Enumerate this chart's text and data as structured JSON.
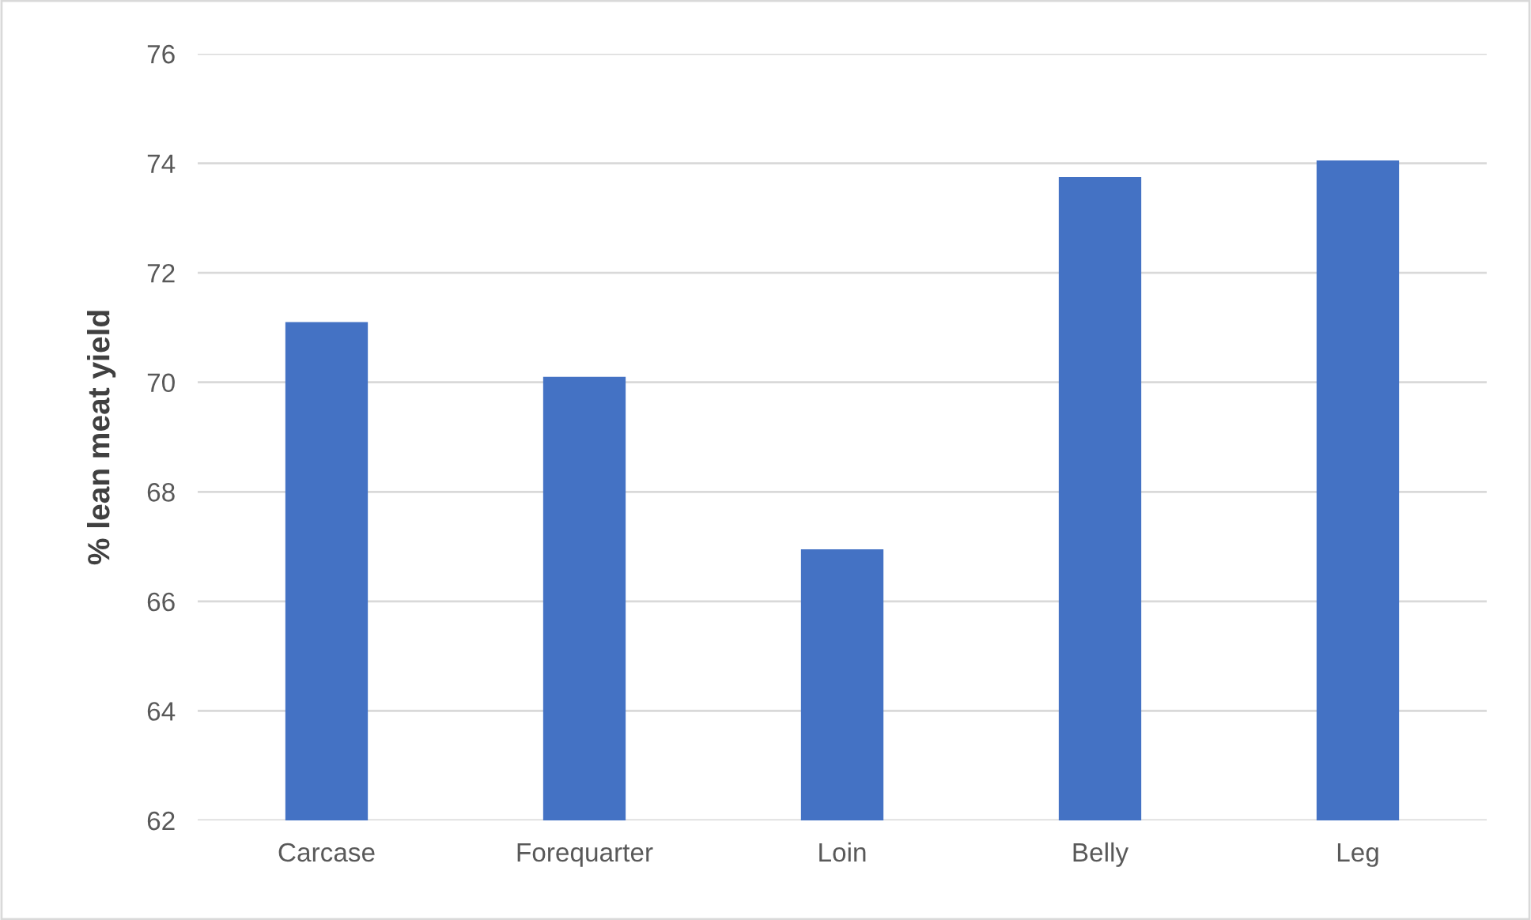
{
  "chart_data": {
    "type": "bar",
    "ylabel": "% lean meat yield",
    "categories": [
      "Carcase",
      "Forequarter",
      "Loin",
      "Belly",
      "Leg"
    ],
    "values": [
      71.1,
      70.1,
      66.95,
      73.75,
      74.05
    ],
    "color": "#4472c4",
    "ylim": [
      62,
      76
    ],
    "yticks": [
      62,
      64,
      66,
      68,
      70,
      72,
      74,
      76
    ],
    "grid": "y"
  }
}
